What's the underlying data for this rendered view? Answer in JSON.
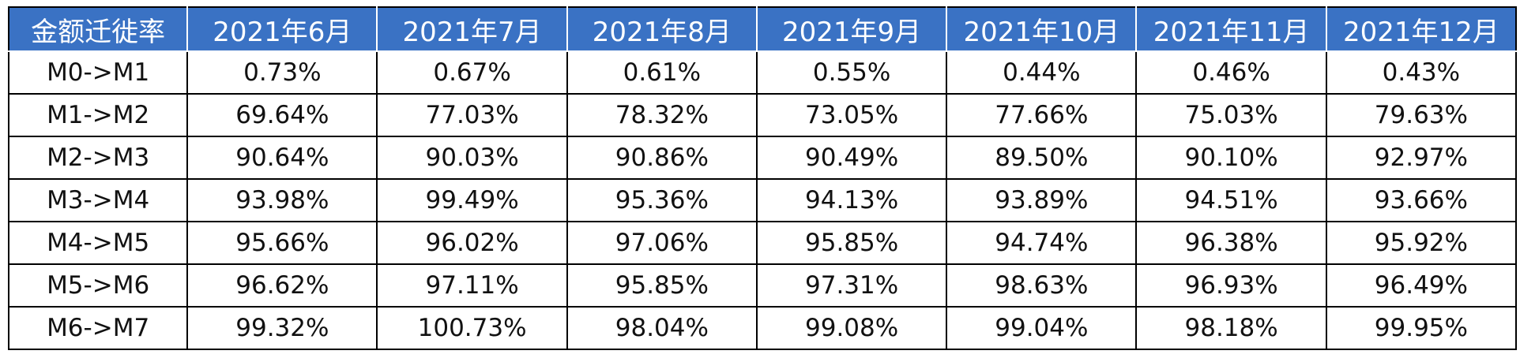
{
  "table": {
    "headers": [
      "金额迁徙率",
      "2021年6月",
      "2021年7月",
      "2021年8月",
      "2021年9月",
      "2021年10月",
      "2021年11月",
      "2021年12月"
    ],
    "rows": [
      {
        "label": "M0->M1",
        "values": [
          "0.73%",
          "0.67%",
          "0.61%",
          "0.55%",
          "0.44%",
          "0.46%",
          "0.43%"
        ]
      },
      {
        "label": "M1->M2",
        "values": [
          "69.64%",
          "77.03%",
          "78.32%",
          "73.05%",
          "77.66%",
          "75.03%",
          "79.63%"
        ]
      },
      {
        "label": "M2->M3",
        "values": [
          "90.64%",
          "90.03%",
          "90.86%",
          "90.49%",
          "89.50%",
          "90.10%",
          "92.97%"
        ]
      },
      {
        "label": "M3->M4",
        "values": [
          "93.98%",
          "99.49%",
          "95.36%",
          "94.13%",
          "93.89%",
          "94.51%",
          "93.66%"
        ]
      },
      {
        "label": "M4->M5",
        "values": [
          "95.66%",
          "96.02%",
          "97.06%",
          "95.85%",
          "94.74%",
          "96.38%",
          "95.92%"
        ]
      },
      {
        "label": "M5->M6",
        "values": [
          "96.62%",
          "97.11%",
          "95.85%",
          "97.31%",
          "98.63%",
          "96.93%",
          "96.49%"
        ]
      },
      {
        "label": "M6->M7",
        "values": [
          "99.32%",
          "100.73%",
          "98.04%",
          "99.08%",
          "99.04%",
          "98.18%",
          "99.95%"
        ]
      }
    ]
  },
  "colors": {
    "header_bg": "#3a72c4",
    "header_text": "#ffffff",
    "border": "#000000"
  }
}
